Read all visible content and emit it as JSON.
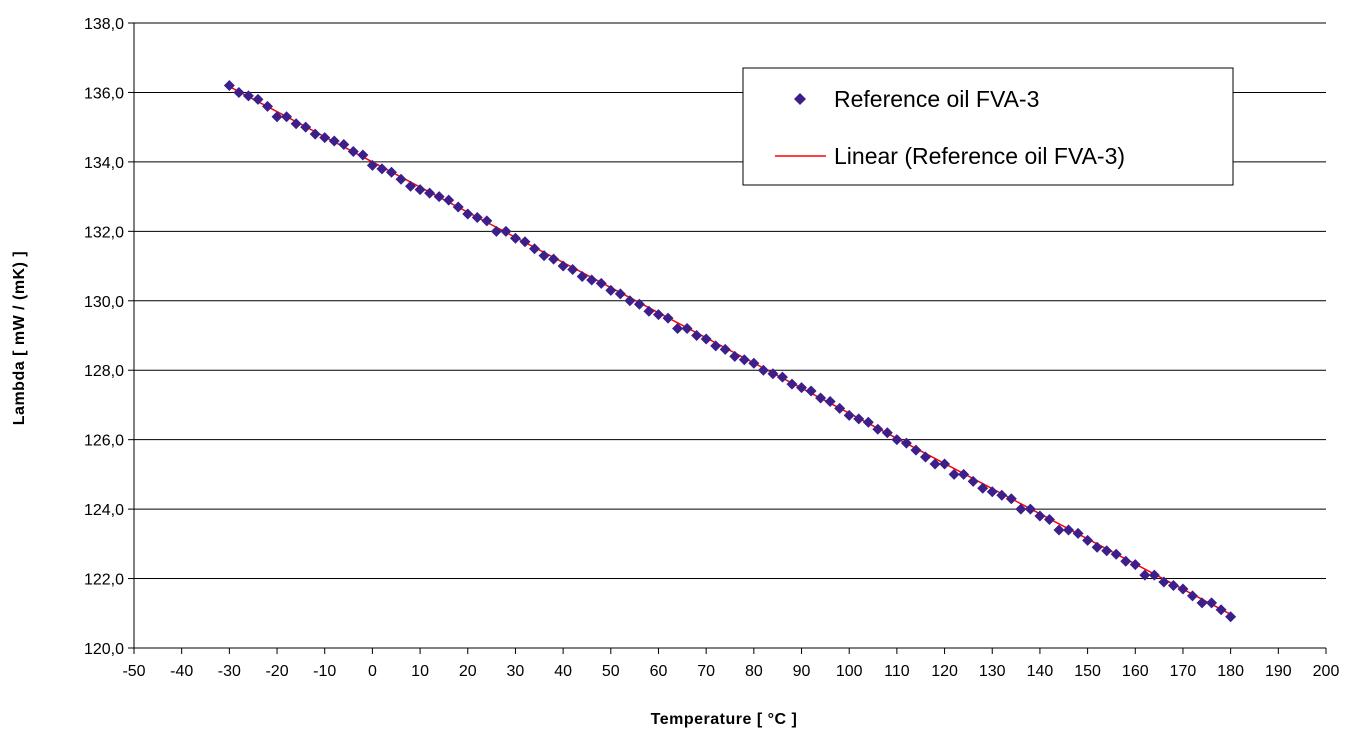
{
  "chart_data": {
    "type": "scatter",
    "xlabel": "Temperature [ °C ]",
    "ylabel": "Lambda [ mW / (mK) ]",
    "xlim": [
      -50,
      200
    ],
    "ylim": [
      120,
      138
    ],
    "x_ticks": [
      -50,
      -40,
      -30,
      -20,
      -10,
      0,
      10,
      20,
      30,
      40,
      50,
      60,
      70,
      80,
      90,
      100,
      110,
      120,
      130,
      140,
      150,
      160,
      170,
      180,
      190,
      200
    ],
    "x_tick_labels": [
      "-50",
      "-40",
      "-30",
      "-20",
      "-10",
      "0",
      "10",
      "20",
      "30",
      "40",
      "50",
      "60",
      "70",
      "80",
      "90",
      "100",
      "110",
      "120",
      "130",
      "140",
      "150",
      "160",
      "170",
      "180",
      "190",
      "200"
    ],
    "y_ticks": [
      120,
      122,
      124,
      126,
      128,
      130,
      132,
      134,
      136,
      138
    ],
    "y_tick_labels": [
      "120,0",
      "122,0",
      "124,0",
      "126,0",
      "128,0",
      "130,0",
      "132,0",
      "134,0",
      "136,0",
      "138,0"
    ],
    "grid": "horizontal",
    "legend_position": "top-right",
    "series": [
      {
        "name": "Reference oil FVA-3",
        "marker": "diamond",
        "color": "#3d1f8c",
        "x": [
          -30,
          -28,
          -26,
          -24,
          -22,
          -20,
          -18,
          -16,
          -14,
          -12,
          -10,
          -8,
          -6,
          -4,
          -2,
          0,
          2,
          4,
          6,
          8,
          10,
          12,
          14,
          16,
          18,
          20,
          22,
          24,
          26,
          28,
          30,
          32,
          34,
          36,
          38,
          40,
          42,
          44,
          46,
          48,
          50,
          52,
          54,
          56,
          58,
          60,
          62,
          64,
          66,
          68,
          70,
          72,
          74,
          76,
          78,
          80,
          82,
          84,
          86,
          88,
          90,
          92,
          94,
          96,
          98,
          100,
          102,
          104,
          106,
          108,
          110,
          112,
          114,
          116,
          118,
          120,
          122,
          124,
          126,
          128,
          130,
          132,
          134,
          136,
          138,
          140,
          142,
          144,
          146,
          148,
          150,
          152,
          154,
          156,
          158,
          160,
          162,
          164,
          166,
          168,
          170,
          172,
          174,
          176,
          178,
          180
        ],
        "y": [
          136.2,
          136.0,
          135.9,
          135.8,
          135.6,
          135.3,
          135.3,
          135.1,
          135.0,
          134.8,
          134.7,
          134.6,
          134.5,
          134.3,
          134.2,
          133.9,
          133.8,
          133.7,
          133.5,
          133.3,
          133.2,
          133.1,
          133.0,
          132.9,
          132.7,
          132.5,
          132.4,
          132.3,
          132.0,
          132.0,
          131.8,
          131.7,
          131.5,
          131.3,
          131.2,
          131.0,
          130.9,
          130.7,
          130.6,
          130.5,
          130.3,
          130.2,
          130.0,
          129.9,
          129.7,
          129.6,
          129.5,
          129.2,
          129.2,
          129.0,
          128.9,
          128.7,
          128.6,
          128.4,
          128.3,
          128.2,
          128.0,
          127.9,
          127.8,
          127.6,
          127.5,
          127.4,
          127.2,
          127.1,
          126.9,
          126.7,
          126.6,
          126.5,
          126.3,
          126.2,
          126.0,
          125.9,
          125.7,
          125.5,
          125.3,
          125.3,
          125.0,
          125.0,
          124.8,
          124.6,
          124.5,
          124.4,
          124.3,
          124.0,
          124.0,
          123.8,
          123.7,
          123.4,
          123.4,
          123.3,
          123.1,
          122.9,
          122.8,
          122.7,
          122.5,
          122.4,
          122.1,
          122.1,
          121.9,
          121.8,
          121.7,
          121.5,
          121.3,
          121.3,
          121.1,
          120.9
        ]
      },
      {
        "name": "Linear (Reference oil FVA-3)",
        "type": "line",
        "color": "#ff0000",
        "x": [
          -30,
          180
        ],
        "y": [
          136.17,
          120.97
        ]
      }
    ]
  }
}
